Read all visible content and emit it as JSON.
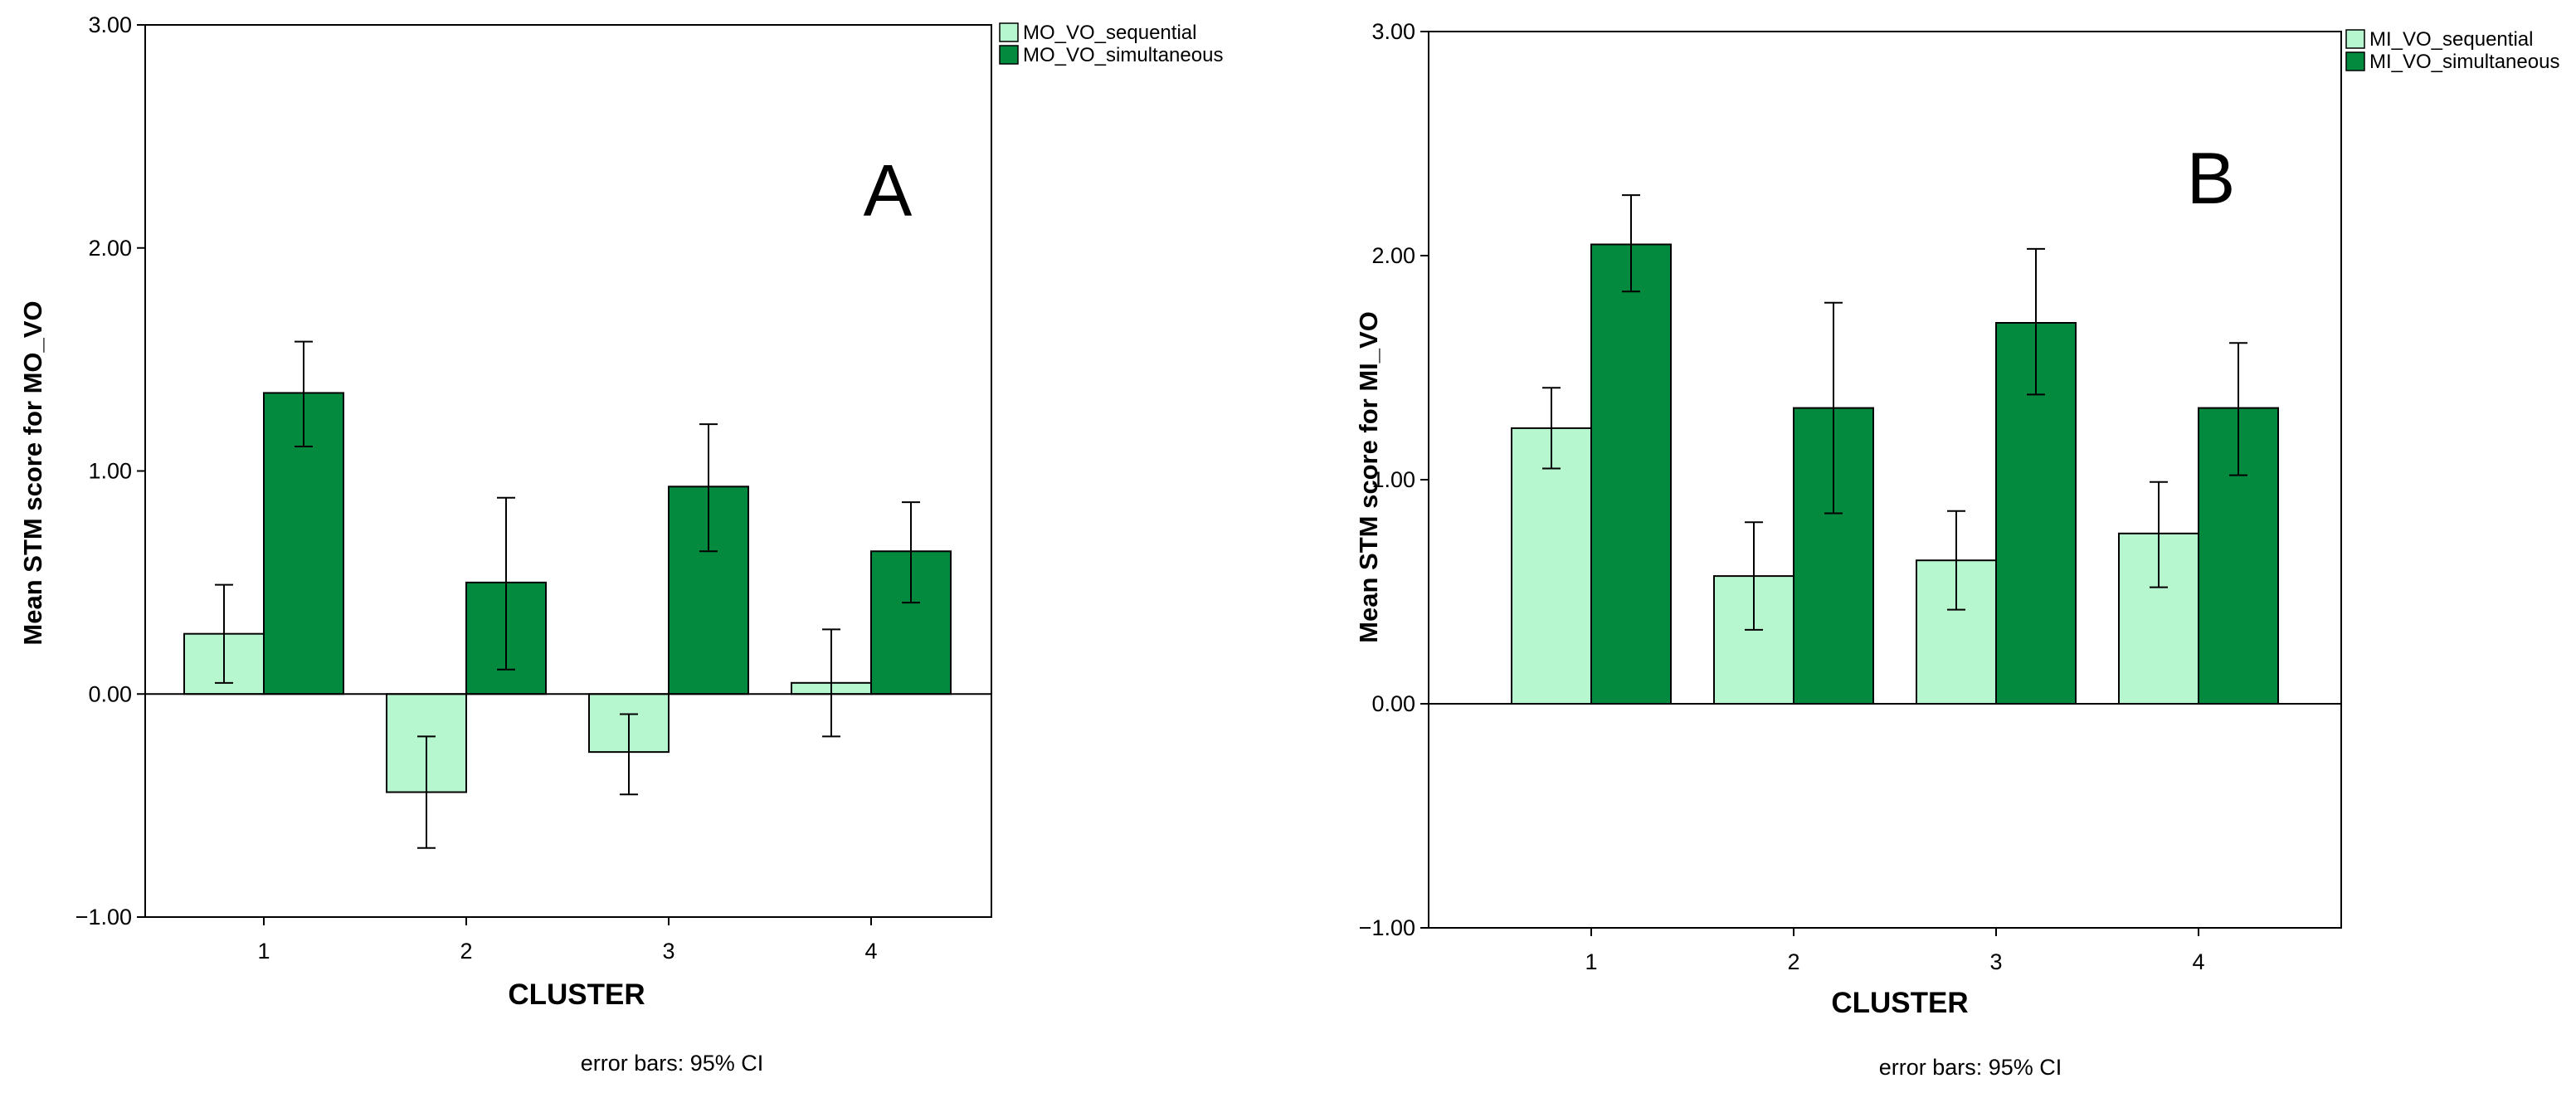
{
  "chart_data": [
    {
      "type": "bar",
      "panel_label": "A",
      "categories": [
        "1",
        "2",
        "3",
        "4"
      ],
      "xlabel": "CLUSTER",
      "ylabel": "Mean STM score for MO_VO",
      "ylim": [
        -1.0,
        3.0
      ],
      "yticks": [
        "3.00",
        "2.00",
        "1.00",
        "0.00",
        "-1.00"
      ],
      "footnote": "error bars: 95% CI",
      "legend_position": "top-right",
      "grid": false,
      "series": [
        {
          "name": "MO_VO_sequential",
          "color": "#b7f7cf",
          "values": [
            0.27,
            -0.44,
            -0.26,
            0.05
          ],
          "ci": [
            [
              0.05,
              0.49
            ],
            [
              -0.69,
              -0.19
            ],
            [
              -0.45,
              -0.09
            ],
            [
              -0.19,
              0.29
            ]
          ]
        },
        {
          "name": "MO_VO_simultaneous",
          "color": "#038a3e",
          "values": [
            1.35,
            0.5,
            0.93,
            0.64
          ],
          "ci": [
            [
              1.11,
              1.58
            ],
            [
              0.11,
              0.88
            ],
            [
              0.64,
              1.21
            ],
            [
              0.41,
              0.86
            ]
          ]
        }
      ]
    },
    {
      "type": "bar",
      "panel_label": "B",
      "categories": [
        "1",
        "2",
        "3",
        "4"
      ],
      "xlabel": "CLUSTER",
      "ylabel": "Mean STM score for MI_VO",
      "ylim": [
        -1.0,
        3.0
      ],
      "yticks": [
        "3.00",
        "2.00",
        "1.00",
        "0.00",
        "-1.00"
      ],
      "footnote": "error bars: 95% CI",
      "legend_position": "top-right",
      "grid": false,
      "series": [
        {
          "name": "MI_VO_sequential",
          "color": "#b7f7cf",
          "values": [
            1.23,
            0.57,
            0.64,
            0.76
          ],
          "ci": [
            [
              1.05,
              1.41
            ],
            [
              0.33,
              0.81
            ],
            [
              0.42,
              0.86
            ],
            [
              0.52,
              0.99
            ]
          ]
        },
        {
          "name": "MI_VO_simultaneous",
          "color": "#038a3e",
          "values": [
            2.05,
            1.32,
            1.7,
            1.32
          ],
          "ci": [
            [
              1.84,
              2.27
            ],
            [
              0.85,
              1.79
            ],
            [
              1.38,
              2.03
            ],
            [
              1.02,
              1.61
            ]
          ]
        }
      ]
    }
  ]
}
